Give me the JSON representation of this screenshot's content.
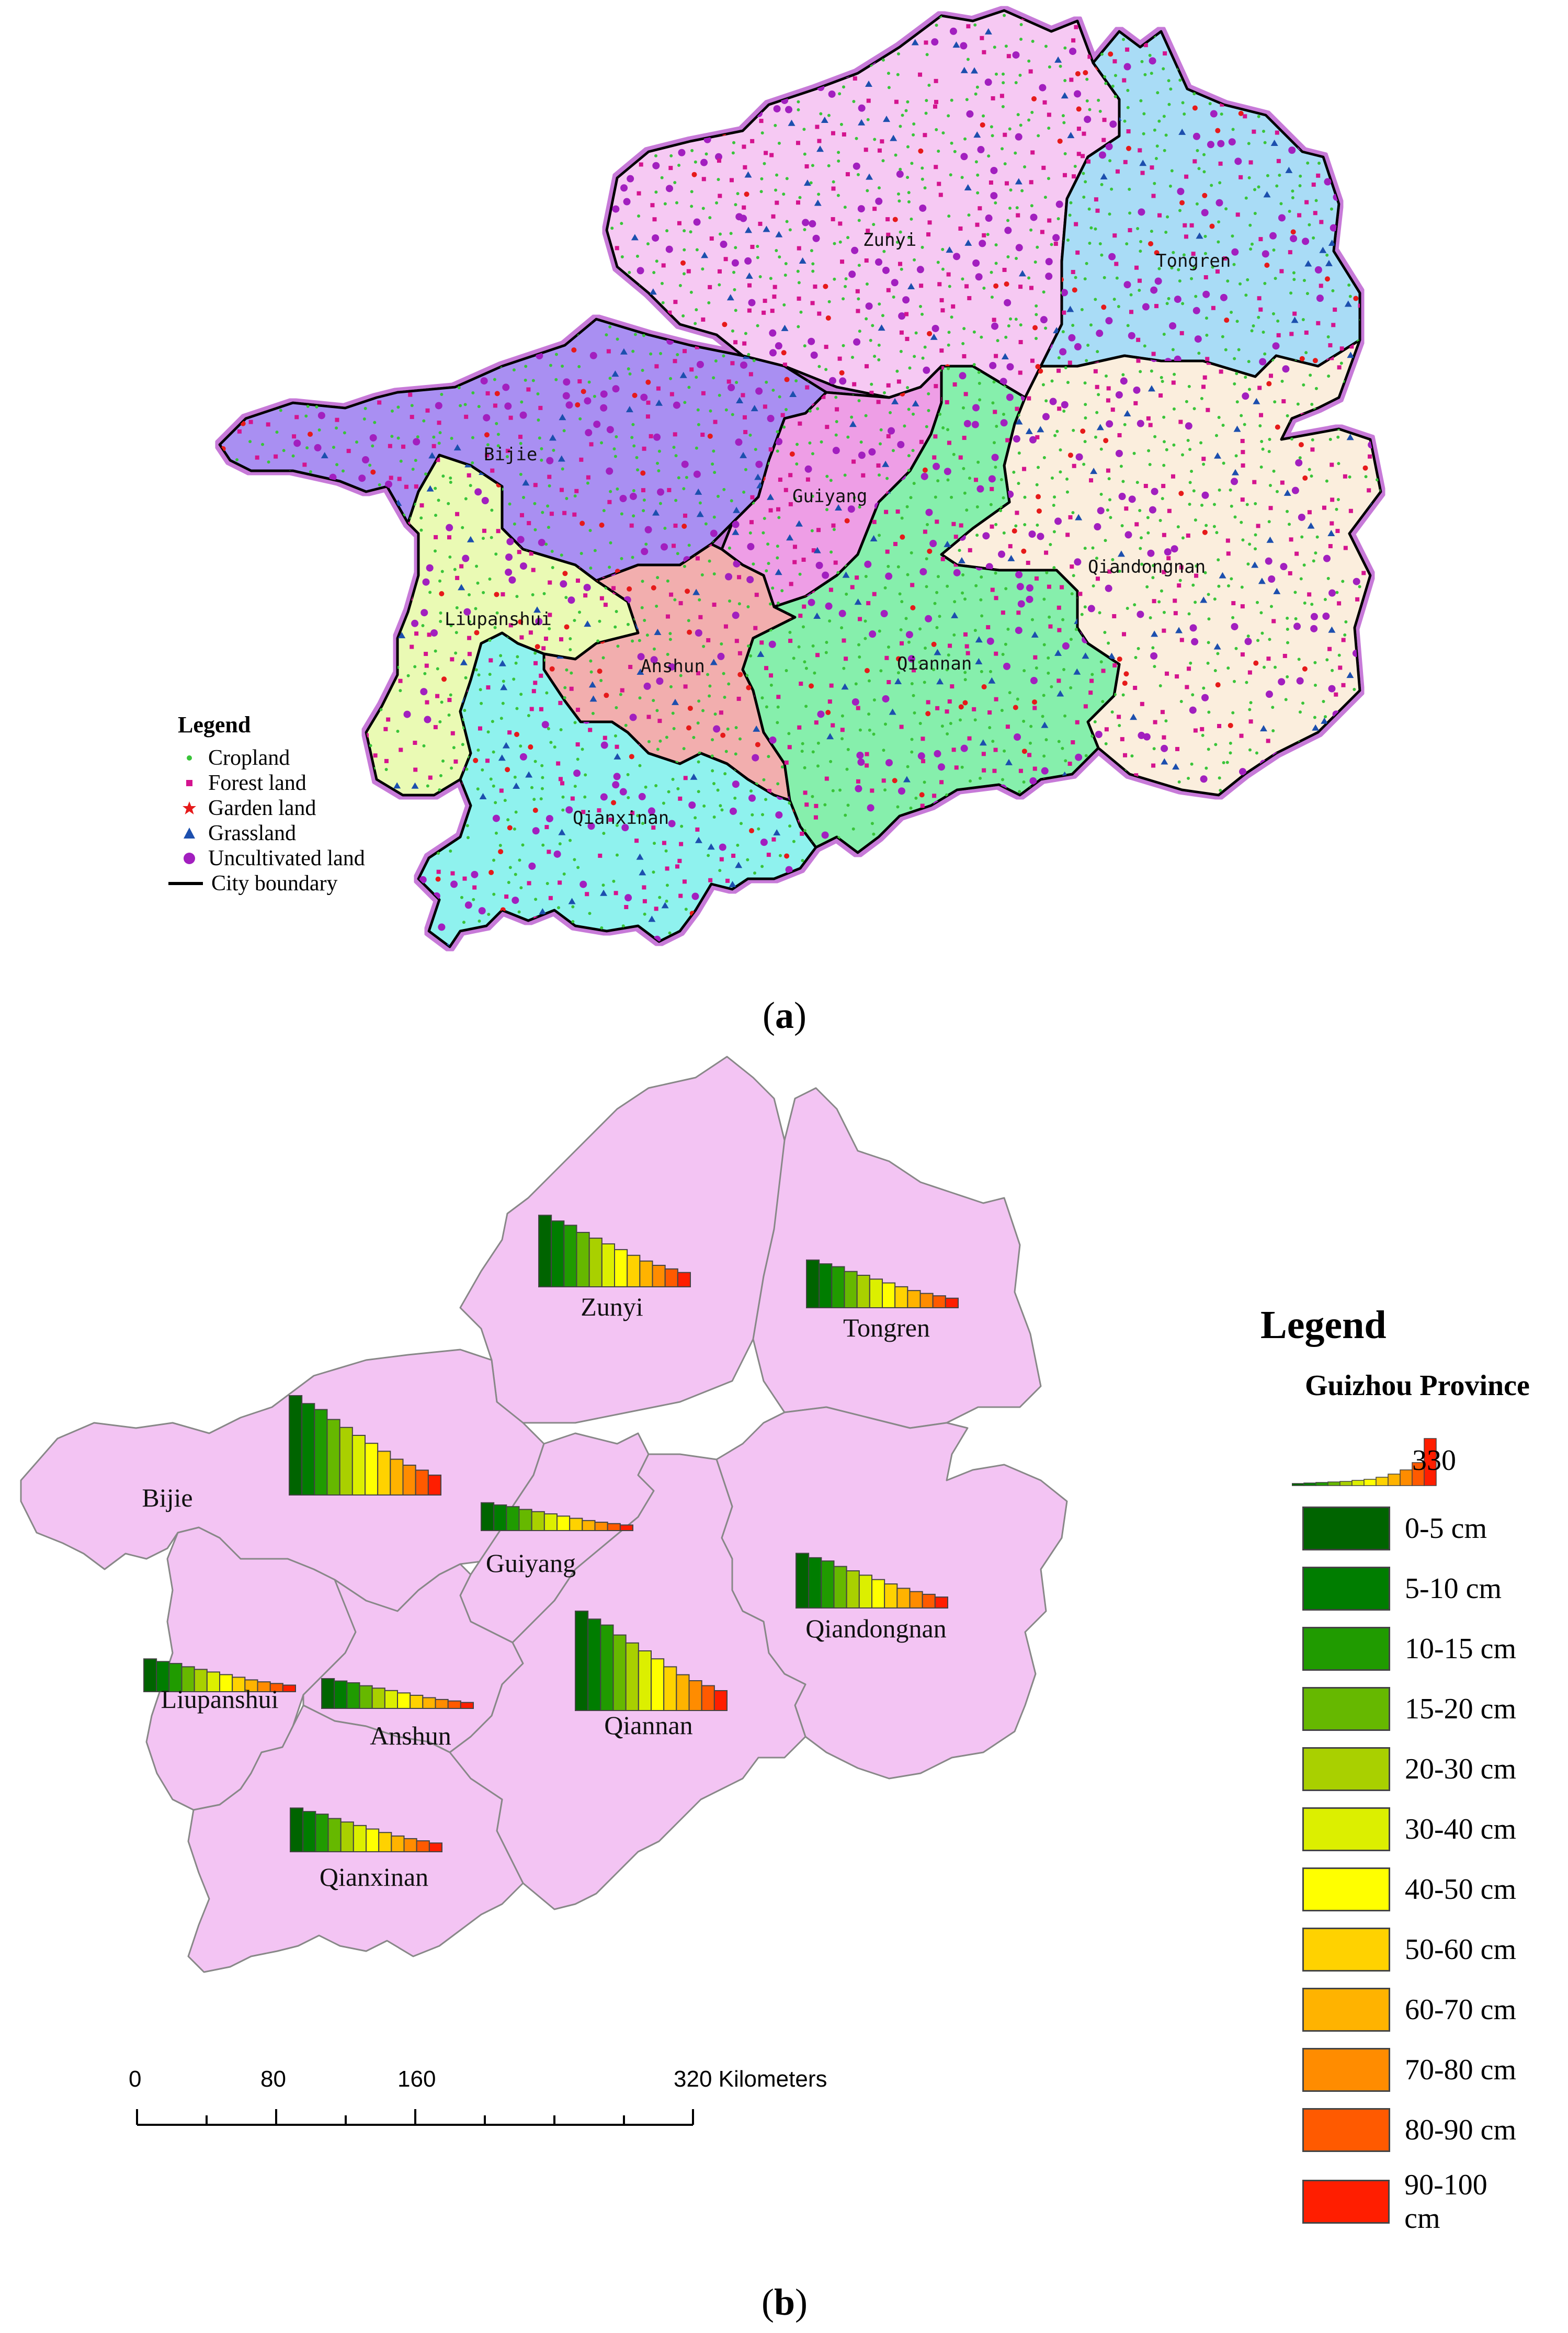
{
  "panel_a": {
    "caption": "a",
    "regions": [
      {
        "name": "Zunyi",
        "color": "#f6c9f3"
      },
      {
        "name": "Tongren",
        "color": "#a9dcf6"
      },
      {
        "name": "Bijie",
        "color": "#a98ff2"
      },
      {
        "name": "Guiyang",
        "color": "#ee9ee6"
      },
      {
        "name": "Qiandongnan",
        "color": "#fbeedd"
      },
      {
        "name": "Liupanshui",
        "color": "#eafab4"
      },
      {
        "name": "Anshun",
        "color": "#f2aeae"
      },
      {
        "name": "Qiannan",
        "color": "#86efac"
      },
      {
        "name": "Qianxinan",
        "color": "#8ff2ee"
      }
    ],
    "legend": {
      "title": "Legend",
      "items": [
        {
          "label": "Cropland",
          "symbol": "dot",
          "color": "#39c439"
        },
        {
          "label": "Forest land",
          "symbol": "square",
          "color": "#d4148f"
        },
        {
          "label": "Garden land",
          "symbol": "star",
          "color": "#e61a1a"
        },
        {
          "label": "Grassland",
          "symbol": "triangle",
          "color": "#1c4fae"
        },
        {
          "label": "Uncultivated land",
          "symbol": "circle",
          "color": "#a21fbf"
        },
        {
          "label": "City boundary",
          "symbol": "line",
          "color": "#000000"
        }
      ]
    }
  },
  "panel_b": {
    "caption": "b",
    "region_color": "#f3c4f3",
    "depth_colors": [
      "#006400",
      "#007d00",
      "#209b00",
      "#66b800",
      "#a9d000",
      "#dcef00",
      "#ffff00",
      "#ffd200",
      "#ffb300",
      "#ff8c00",
      "#ff5a00",
      "#ff1e00"
    ],
    "regions": [
      {
        "name": "Zunyi",
        "scale": 0.72
      },
      {
        "name": "Tongren",
        "scale": 0.48
      },
      {
        "name": "Bijie",
        "scale": 1.0
      },
      {
        "name": "Guiyang",
        "scale": 0.28
      },
      {
        "name": "Qiandongnan",
        "scale": 0.55
      },
      {
        "name": "Liupanshui",
        "scale": 0.33
      },
      {
        "name": "Anshun",
        "scale": 0.3
      },
      {
        "name": "Qiannan",
        "scale": 1.0
      },
      {
        "name": "Qianxinan",
        "scale": 0.44
      }
    ],
    "legend": {
      "title": "Legend",
      "subtitle": "Guizhou Province",
      "total_label": "330",
      "classes": [
        "0-5 cm",
        "5-10 cm",
        "10-15 cm",
        "15-20 cm",
        "20-30 cm",
        "30-40 cm",
        "40-50 cm",
        "50-60 cm",
        "60-70 cm",
        "70-80 cm",
        "80-90 cm",
        "90-100 cm"
      ]
    },
    "scalebar": {
      "labels": [
        "0",
        "80",
        "160",
        "320 Kilometers"
      ]
    }
  }
}
